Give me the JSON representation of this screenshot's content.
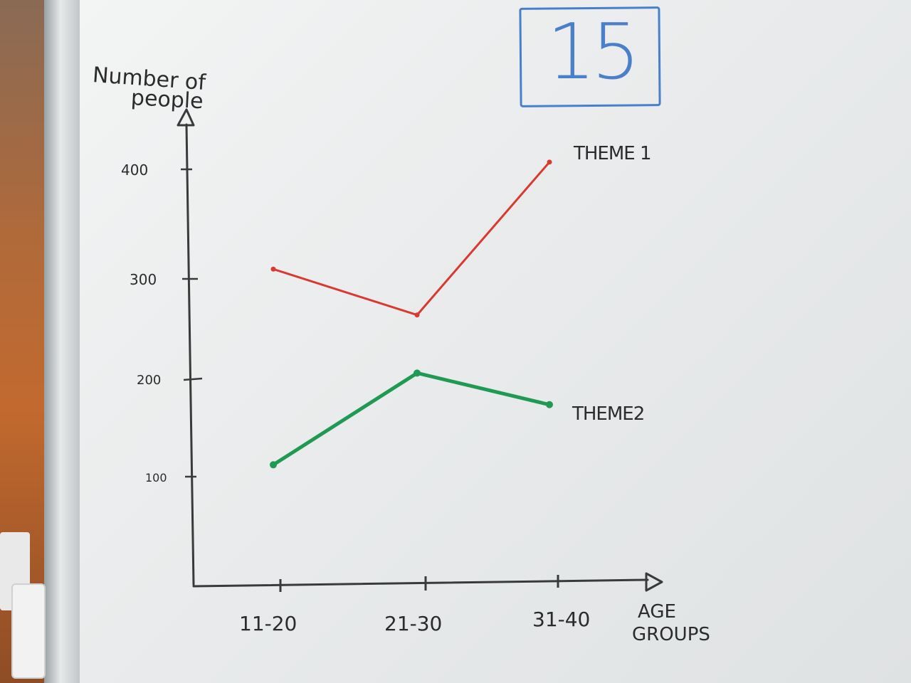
{
  "board": {
    "page_number": "15"
  },
  "chart_data": {
    "type": "line",
    "ylabel_line1": "Number of",
    "ylabel_line2": "people",
    "xlabel_line1": "AGE",
    "xlabel_line2": "GROUPS",
    "categories": [
      "11-20",
      "21-30",
      "31-40"
    ],
    "yticks": [
      100,
      200,
      300,
      400
    ],
    "yticklabels": [
      "100",
      "200",
      "300",
      "400"
    ],
    "ylim": [
      0,
      430
    ],
    "grid": false,
    "series": [
      {
        "name": "THEME 1",
        "color": "#d93a30",
        "values": [
          300,
          255,
          405
        ]
      },
      {
        "name": "THEME2",
        "color": "#1f9a52",
        "values": [
          108,
          198,
          167
        ]
      }
    ]
  }
}
